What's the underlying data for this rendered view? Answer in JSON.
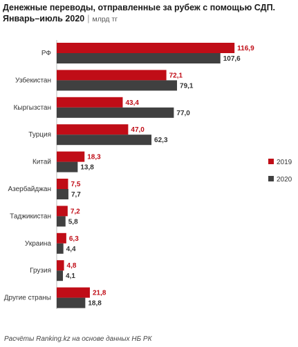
{
  "title": {
    "line1": "Денежные переводы, отправленные за рубеж с помощью СДП.",
    "line2": "Январь–июль 2020",
    "separator": "|",
    "unit": "млрд тг"
  },
  "footer": "Расчёты Ranking.kz на основе данных НБ РК",
  "colors": {
    "2019": "#c00d17",
    "2020": "#404040",
    "value_2019": "#c00d17",
    "value_2020": "#333333"
  },
  "chart_data": {
    "type": "bar",
    "orientation": "horizontal",
    "categories": [
      "РФ",
      "Узбекистан",
      "Кыргызстан",
      "Турция",
      "Китай",
      "Азербайджан",
      "Таджикистан",
      "Украина",
      "Грузия",
      "Другие страны"
    ],
    "series": [
      {
        "name": "2019",
        "values": [
          116.9,
          72.1,
          43.4,
          47.0,
          18.3,
          7.5,
          7.2,
          6.3,
          4.8,
          21.8
        ],
        "labels": [
          "116,9",
          "72,1",
          "43,4",
          "47,0",
          "18,3",
          "7,5",
          "7,2",
          "6,3",
          "4,8",
          "21,8"
        ]
      },
      {
        "name": "2020",
        "values": [
          107.6,
          79.1,
          77.0,
          62.3,
          13.8,
          7.7,
          5.8,
          4.4,
          4.1,
          18.8
        ],
        "labels": [
          "107,6",
          "79,1",
          "77,0",
          "62,3",
          "13,8",
          "7,7",
          "5,8",
          "4,4",
          "4,1",
          "18,8"
        ]
      }
    ],
    "legend_position": "right",
    "grid": false
  }
}
